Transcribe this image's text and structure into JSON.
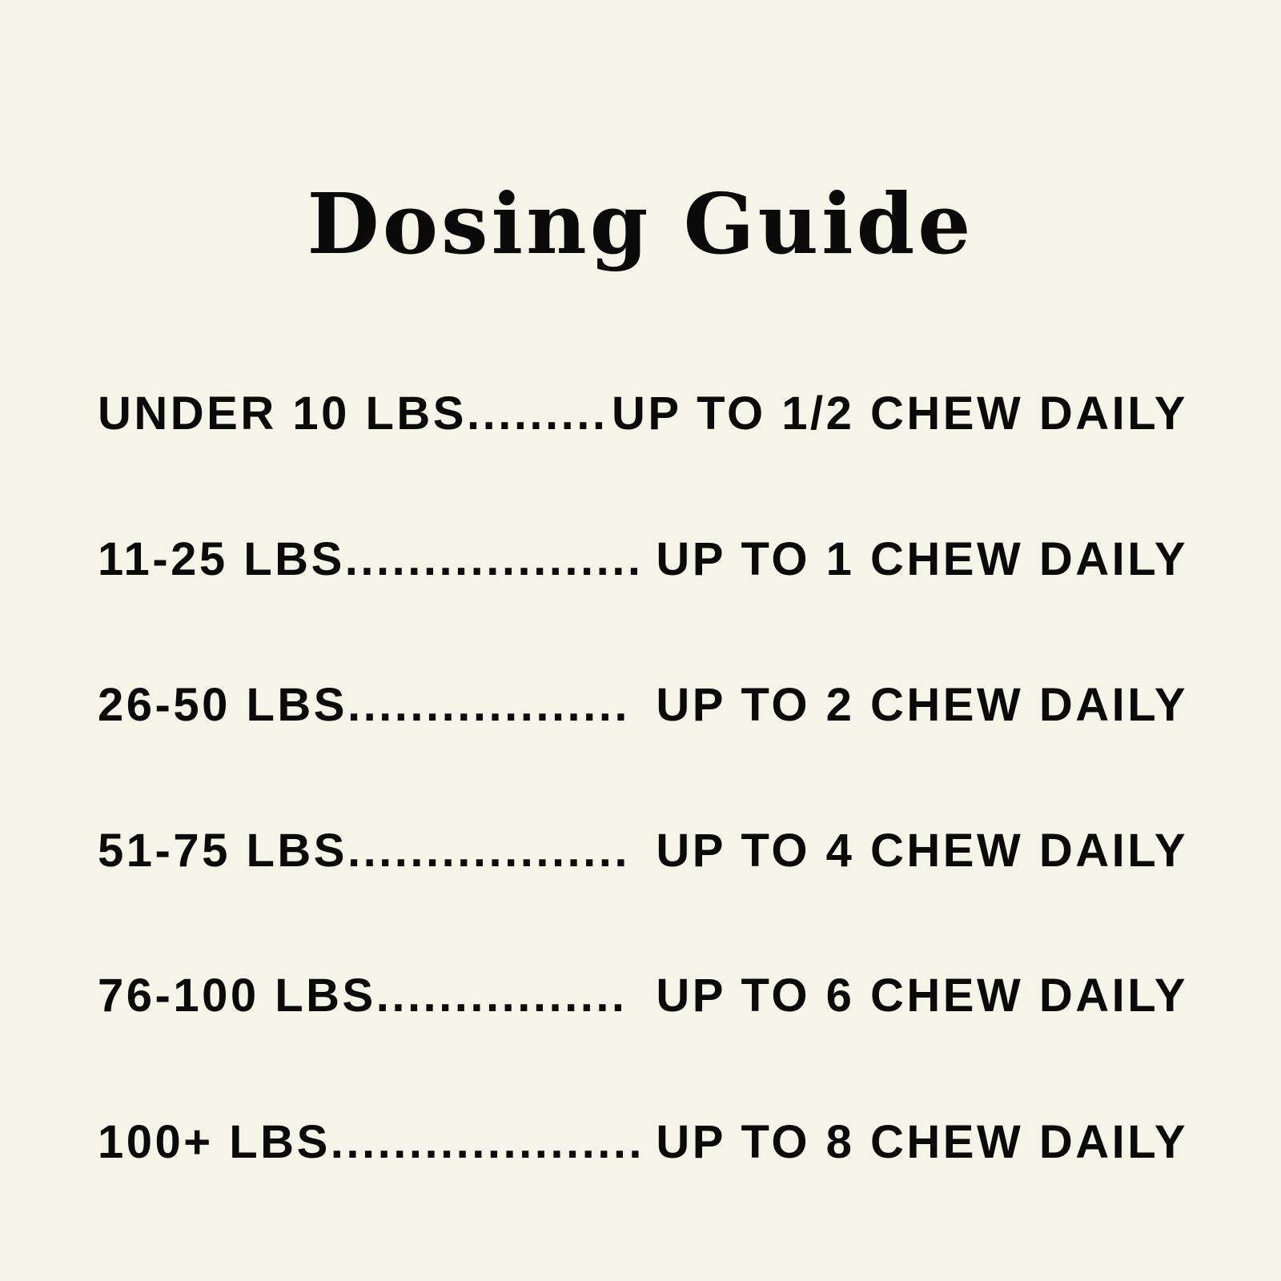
{
  "title": "Dosing Guide",
  "colors": {
    "background": "#f4f4e8",
    "text": "#0a0a0a"
  },
  "rows": [
    {
      "weight": "UNDER 10 LBS.........",
      "dose": "UP TO 1/2 CHEW DAILY"
    },
    {
      "weight": "11-25 LBS...................",
      "dose": "UP TO 1 CHEW DAILY"
    },
    {
      "weight": "26-50 LBS..................",
      "dose": "UP TO 2 CHEW DAILY"
    },
    {
      "weight": "51-75 LBS..................",
      "dose": "UP TO 4 CHEW DAILY"
    },
    {
      "weight": "76-100 LBS................",
      "dose": "UP TO 6 CHEW DAILY"
    },
    {
      "weight": "100+ LBS....................",
      "dose": "UP TO 8 CHEW DAILY"
    }
  ]
}
